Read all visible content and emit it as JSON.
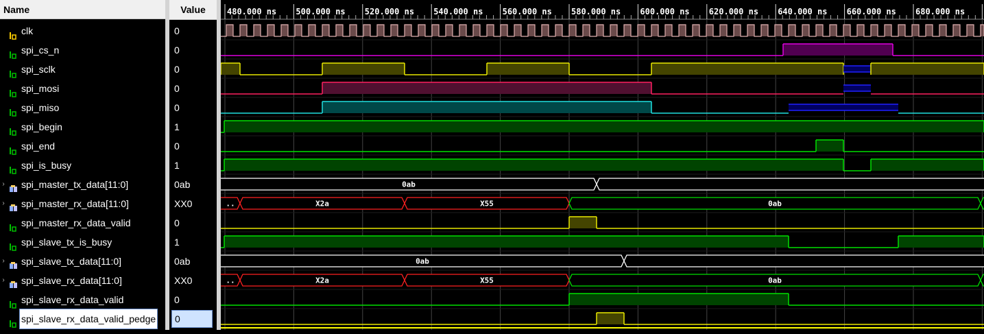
{
  "headers": {
    "name": "Name",
    "value": "Value"
  },
  "colors": {
    "green": "#00e000",
    "greenFill": "#004400",
    "yellow": "#e8e800",
    "yellowFill": "#444400",
    "magenta": "#e000e0",
    "magentaFill": "#500050",
    "pink": "#ff2060",
    "pinkFill": "#501030",
    "cyan": "#20e0e0",
    "cyanFill": "#004848",
    "blue": "#2020ff",
    "blueFill": "#000060",
    "red": "#ff2020",
    "white": "#ffffff",
    "clkFill": "#6a4a4a",
    "clkLine": "#e0b0b0"
  },
  "timeline": {
    "tick_labels": [
      "480.000 ns",
      "500.000 ns",
      "520.000 ns",
      "540.000 ns",
      "560.000 ns",
      "580.000 ns",
      "600.000 ns",
      "620.000 ns",
      "640.000 ns",
      "660.000 ns",
      "680.000 ns",
      "7"
    ]
  },
  "signals": [
    {
      "name": "clk",
      "value": "0",
      "type": "clock",
      "icon": "scalar-yellow-icon"
    },
    {
      "name": "spi_cs_n",
      "value": "0",
      "type": "bit",
      "icon": "scalar-icon",
      "color": "magenta",
      "segments": [
        [
          0,
          820,
          0
        ],
        [
          820,
          980,
          1
        ],
        [
          980,
          1113,
          0
        ]
      ]
    },
    {
      "name": "spi_sclk",
      "value": "0",
      "type": "bit",
      "icon": "scalar-icon",
      "color": "yellow",
      "segments": [
        [
          0,
          28,
          1
        ],
        [
          28,
          148,
          0
        ],
        [
          148,
          268,
          1
        ],
        [
          268,
          388,
          0
        ],
        [
          388,
          508,
          1
        ],
        [
          508,
          628,
          0
        ],
        [
          628,
          908,
          1
        ],
        [
          908,
          948,
          "z"
        ],
        [
          948,
          1113,
          1
        ]
      ]
    },
    {
      "name": "spi_mosi",
      "value": "0",
      "type": "bit",
      "icon": "scalar-icon",
      "color": "pink",
      "segments": [
        [
          0,
          148,
          0
        ],
        [
          148,
          628,
          1
        ],
        [
          628,
          908,
          0
        ],
        [
          908,
          948,
          "z"
        ],
        [
          948,
          1113,
          0
        ]
      ]
    },
    {
      "name": "spi_miso",
      "value": "0",
      "type": "bit",
      "icon": "scalar-icon",
      "color": "cyan",
      "segments": [
        [
          0,
          148,
          0
        ],
        [
          148,
          628,
          1
        ],
        [
          628,
          828,
          0
        ],
        [
          828,
          988,
          "z"
        ],
        [
          988,
          1113,
          0
        ]
      ]
    },
    {
      "name": "spi_begin",
      "value": "1",
      "type": "bit",
      "icon": "scalar-icon",
      "color": "green",
      "segments": [
        [
          0,
          5,
          0
        ],
        [
          5,
          1113,
          1
        ]
      ]
    },
    {
      "name": "spi_end",
      "value": "0",
      "type": "bit",
      "icon": "scalar-icon",
      "color": "green",
      "segments": [
        [
          0,
          868,
          0
        ],
        [
          868,
          908,
          1
        ],
        [
          908,
          1113,
          0
        ]
      ]
    },
    {
      "name": "spi_is_busy",
      "value": "1",
      "type": "bit",
      "icon": "scalar-icon",
      "color": "green",
      "segments": [
        [
          0,
          5,
          0
        ],
        [
          5,
          908,
          1
        ],
        [
          908,
          948,
          0
        ],
        [
          948,
          1113,
          1
        ]
      ]
    },
    {
      "name": "spi_master_tx_data[11:0]",
      "value": "0ab",
      "type": "bus",
      "icon": "bus-icon",
      "expandable": true,
      "color": "white",
      "segments": [
        [
          0,
          548,
          "0ab"
        ],
        [
          548,
          1113,
          ""
        ]
      ]
    },
    {
      "name": "spi_master_rx_data[11:0]",
      "value": "XX0",
      "type": "bus",
      "icon": "bus-icon",
      "expandable": true,
      "segments": [
        [
          0,
          28,
          "..",
          "red"
        ],
        [
          28,
          268,
          "X2a",
          "red"
        ],
        [
          268,
          508,
          "X55",
          "red"
        ],
        [
          508,
          1108,
          "0ab",
          "green"
        ],
        [
          1108,
          1113,
          "",
          "green"
        ]
      ]
    },
    {
      "name": "spi_master_rx_data_valid",
      "value": "0",
      "type": "bit",
      "icon": "scalar-icon",
      "color": "yellow",
      "segments": [
        [
          0,
          508,
          0
        ],
        [
          508,
          548,
          1
        ],
        [
          548,
          1113,
          0
        ]
      ]
    },
    {
      "name": "spi_slave_tx_is_busy",
      "value": "1",
      "type": "bit",
      "icon": "scalar-icon",
      "color": "green",
      "segments": [
        [
          0,
          5,
          0
        ],
        [
          5,
          828,
          1
        ],
        [
          828,
          988,
          0
        ],
        [
          988,
          1113,
          1
        ]
      ]
    },
    {
      "name": "spi_slave_tx_data[11:0]",
      "value": "0ab",
      "type": "bus",
      "icon": "bus-icon",
      "expandable": true,
      "color": "white",
      "segments": [
        [
          0,
          588,
          "0ab"
        ],
        [
          588,
          1113,
          ""
        ]
      ]
    },
    {
      "name": "spi_slave_rx_data[11:0]",
      "value": "XX0",
      "type": "bus",
      "icon": "bus-icon",
      "expandable": true,
      "segments": [
        [
          0,
          28,
          "..",
          "red"
        ],
        [
          28,
          268,
          "X2a",
          "red"
        ],
        [
          268,
          508,
          "X55",
          "red"
        ],
        [
          508,
          1108,
          "0ab",
          "green"
        ],
        [
          1108,
          1113,
          "",
          "green"
        ]
      ]
    },
    {
      "name": "spi_slave_rx_data_valid",
      "value": "0",
      "type": "bit",
      "icon": "scalar-icon",
      "color": "green",
      "segments": [
        [
          0,
          508,
          0
        ],
        [
          508,
          828,
          1
        ],
        [
          828,
          1113,
          0
        ]
      ]
    },
    {
      "name": "spi_slave_rx_data_valid_pedge",
      "value": "0",
      "type": "bit",
      "icon": "scalar-icon",
      "selected": true,
      "color": "yellow",
      "segments": [
        [
          0,
          548,
          0
        ],
        [
          548,
          588,
          1
        ],
        [
          588,
          1113,
          0
        ]
      ]
    }
  ]
}
